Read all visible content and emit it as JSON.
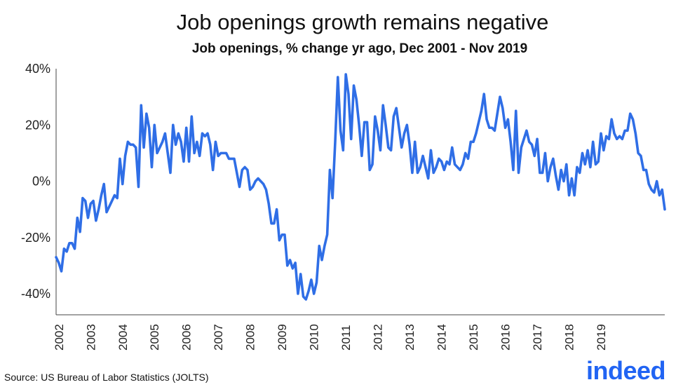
{
  "title": "Job openings growth remains negative",
  "subtitle": "Job openings, % change yr ago, Dec 2001 - Nov 2019",
  "source": "Source: US Bureau of Labor Statistics (JOLTS)",
  "logo_text": "indeed",
  "colors": {
    "line": "#2f6ee6",
    "logo": "#2164f3",
    "axis": "#444444"
  },
  "chart_data": {
    "type": "line",
    "title": "Job openings growth remains negative",
    "subtitle": "Job openings, % change yr ago, Dec 2001 - Nov 2019",
    "xlabel": "",
    "ylabel": "",
    "ylim": [
      -45,
      40
    ],
    "yticks": [
      40,
      20,
      0,
      -20,
      -40
    ],
    "ytick_labels": [
      "40%",
      "20%",
      "0%",
      "-20%",
      "-40%"
    ],
    "xticks": [
      "2002",
      "2003",
      "2004",
      "2005",
      "2006",
      "2007",
      "2008",
      "2009",
      "2010",
      "2011",
      "2012",
      "2013",
      "2014",
      "2015",
      "2016",
      "2017",
      "2018",
      "2019"
    ],
    "x_start": "2001-12",
    "x_end": "2019-11",
    "grid": false,
    "series": [
      {
        "values": [
          -27,
          -29,
          -32,
          -24,
          -25,
          -22,
          -22,
          -24,
          -13,
          -18,
          -6,
          -7,
          -13,
          -8,
          -7,
          -14,
          -10,
          -5,
          -1,
          -11,
          -9,
          -7,
          -5,
          -6,
          8,
          -1,
          9,
          14,
          13,
          13,
          12,
          -2,
          27,
          12,
          24,
          19,
          5,
          20,
          10,
          12,
          14,
          17,
          10,
          3,
          20,
          13,
          17,
          14,
          7,
          19,
          7,
          23,
          10,
          14,
          9,
          17,
          16,
          17,
          13,
          4,
          14,
          9,
          10,
          10,
          10,
          8,
          8,
          8,
          3,
          -2,
          4,
          5,
          4,
          -3,
          -2,
          0,
          1,
          0,
          -1,
          -3,
          -8,
          -15,
          -15,
          -10,
          -21,
          -19,
          -19,
          -30,
          -28,
          -31,
          -29,
          -40,
          -33,
          -41,
          -42,
          -39,
          -35,
          -40,
          -36,
          -23,
          -28,
          -23,
          -19,
          4,
          -6,
          14,
          37,
          18,
          11,
          38,
          31,
          15,
          34,
          29,
          20,
          9,
          21,
          21,
          4,
          6,
          23,
          18,
          11,
          27,
          20,
          12,
          11,
          23,
          26,
          19,
          12,
          17,
          20,
          13,
          3,
          14,
          3,
          5,
          9,
          5,
          1,
          11,
          3,
          5,
          8,
          7,
          4,
          7,
          6,
          12,
          6,
          5,
          4,
          6,
          10,
          8,
          14,
          14,
          17,
          21,
          25,
          31,
          22,
          19,
          19,
          18,
          24,
          30,
          26,
          19,
          22,
          14,
          4,
          25,
          3,
          12,
          15,
          18,
          14,
          13,
          9,
          15,
          3,
          3,
          10,
          0,
          5,
          8,
          2,
          -3,
          4,
          0,
          6,
          -5,
          1,
          -5,
          5,
          3,
          10,
          6,
          11,
          5,
          14,
          6,
          7,
          17,
          11,
          16,
          15,
          22,
          17,
          15,
          16,
          15,
          18,
          18,
          24,
          22,
          17,
          10,
          9,
          4,
          4,
          -1,
          -3,
          -4,
          0,
          -5,
          -3,
          -10
        ]
      }
    ]
  }
}
